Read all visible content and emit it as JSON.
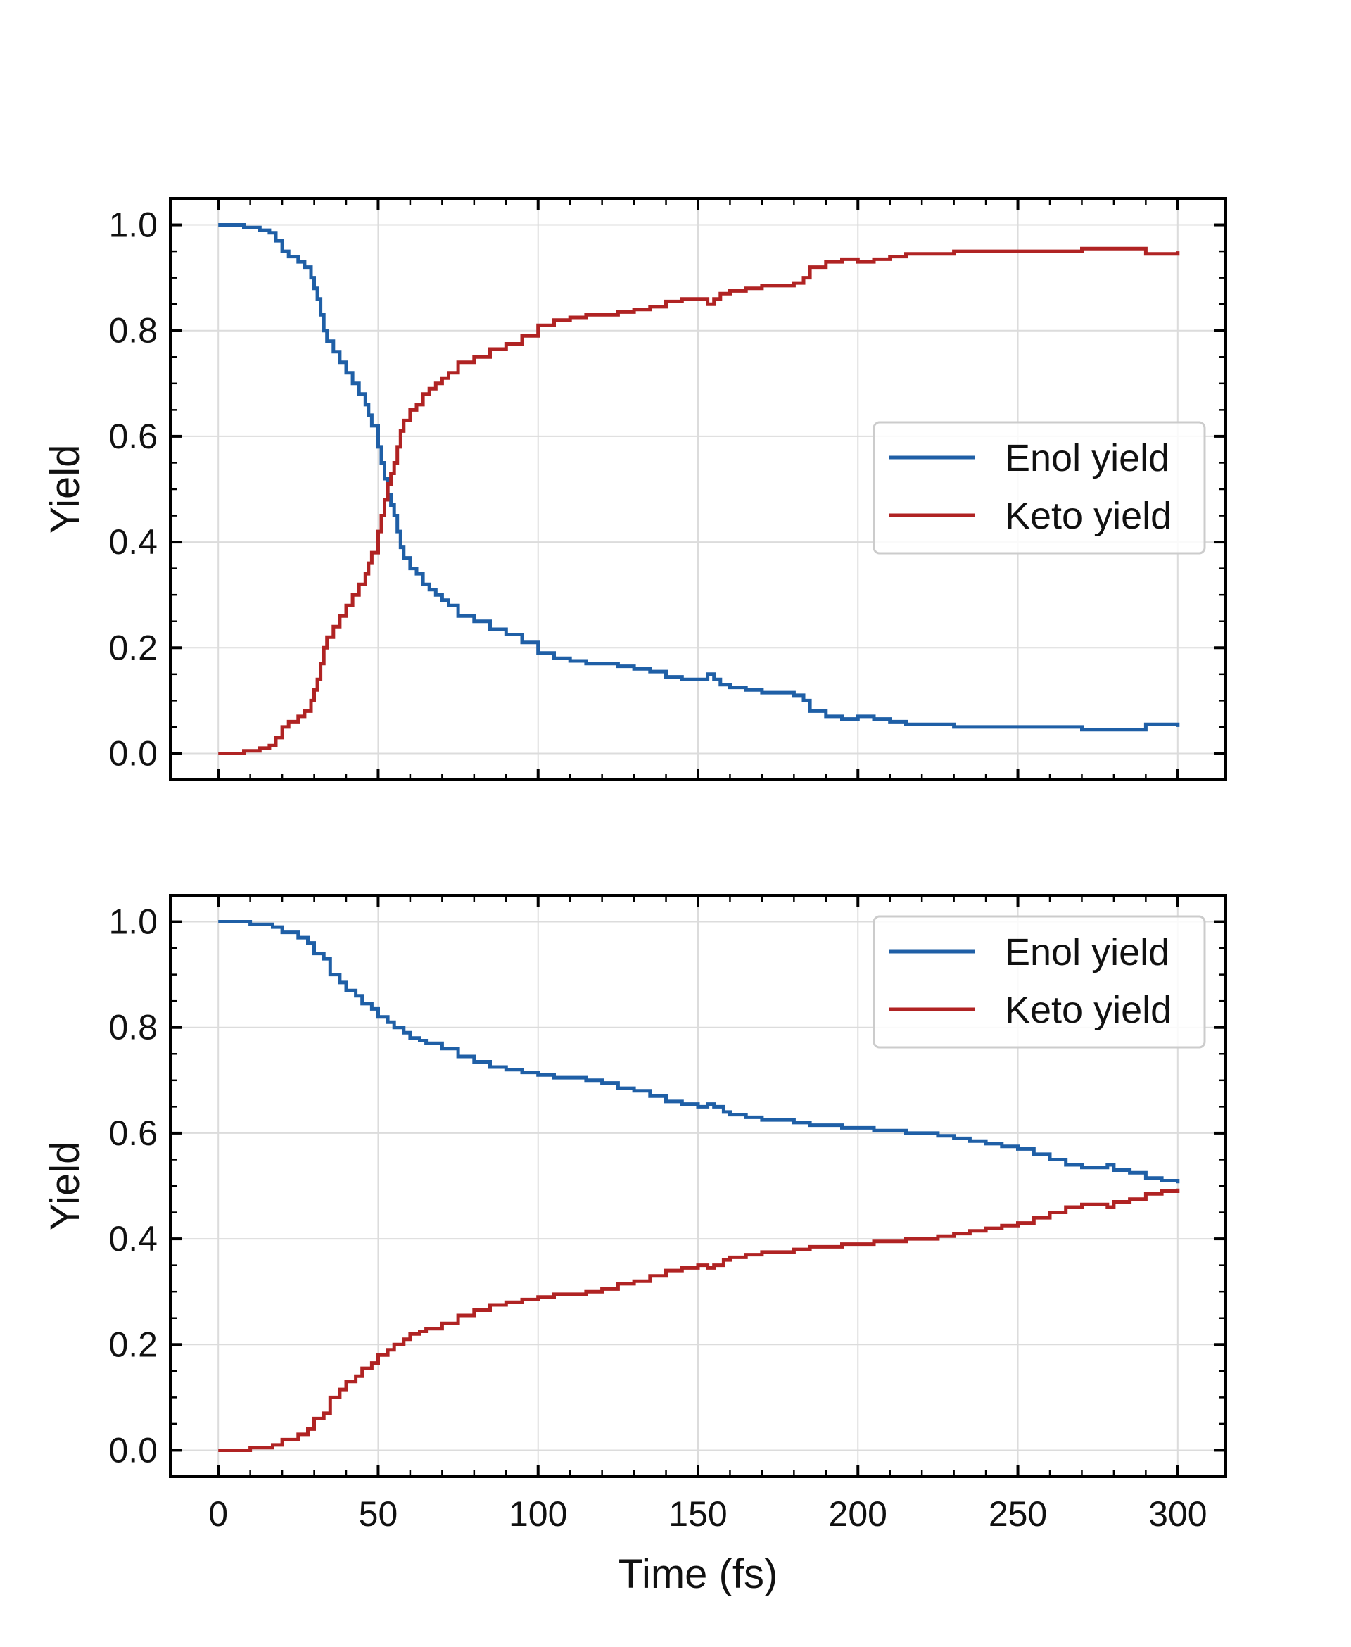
{
  "chart_data": [
    {
      "type": "line",
      "panel": "top",
      "title": "",
      "xlabel": "",
      "ylabel": "Yield",
      "xlim": [
        -15,
        315
      ],
      "ylim": [
        -0.05,
        1.05
      ],
      "xticks": [
        0,
        50,
        100,
        150,
        200,
        250,
        300
      ],
      "yticks": [
        0.0,
        0.2,
        0.4,
        0.6,
        0.8,
        1.0
      ],
      "ytick_labels": [
        "0.0",
        "0.2",
        "0.4",
        "0.6",
        "0.8",
        "1.0"
      ],
      "grid": true,
      "legend_position": "center-right",
      "series": [
        {
          "name": "Enol yield",
          "color": "#1f5fa6",
          "x": [
            0,
            5,
            8,
            11,
            13,
            16,
            18,
            20,
            22,
            25,
            27,
            29,
            30,
            31,
            32,
            33,
            34,
            36,
            38,
            40,
            42,
            44,
            46,
            47,
            48,
            50,
            51,
            52,
            53,
            54,
            55,
            56,
            57,
            58,
            60,
            62,
            64,
            66,
            68,
            70,
            72,
            75,
            80,
            85,
            90,
            95,
            100,
            105,
            110,
            115,
            120,
            125,
            130,
            135,
            140,
            145,
            150,
            153,
            155,
            157,
            160,
            165,
            170,
            175,
            180,
            183,
            185,
            190,
            195,
            200,
            205,
            210,
            215,
            220,
            230,
            240,
            250,
            260,
            270,
            280,
            285,
            290,
            295,
            300
          ],
          "values": [
            1.0,
            1.0,
            0.995,
            0.995,
            0.99,
            0.985,
            0.97,
            0.95,
            0.94,
            0.93,
            0.92,
            0.9,
            0.88,
            0.86,
            0.83,
            0.8,
            0.78,
            0.76,
            0.74,
            0.72,
            0.7,
            0.68,
            0.66,
            0.64,
            0.62,
            0.58,
            0.55,
            0.52,
            0.49,
            0.47,
            0.45,
            0.42,
            0.39,
            0.37,
            0.35,
            0.34,
            0.32,
            0.31,
            0.3,
            0.29,
            0.28,
            0.26,
            0.25,
            0.235,
            0.225,
            0.21,
            0.19,
            0.18,
            0.175,
            0.17,
            0.17,
            0.165,
            0.16,
            0.155,
            0.145,
            0.14,
            0.14,
            0.15,
            0.14,
            0.13,
            0.125,
            0.12,
            0.115,
            0.115,
            0.11,
            0.1,
            0.08,
            0.07,
            0.065,
            0.07,
            0.065,
            0.06,
            0.055,
            0.055,
            0.05,
            0.05,
            0.05,
            0.05,
            0.045,
            0.045,
            0.045,
            0.055,
            0.055,
            0.05
          ]
        },
        {
          "name": "Keto yield",
          "color": "#b02323",
          "x": [
            0,
            5,
            8,
            11,
            13,
            16,
            18,
            20,
            22,
            25,
            27,
            29,
            30,
            31,
            32,
            33,
            34,
            36,
            38,
            40,
            42,
            44,
            46,
            47,
            48,
            50,
            51,
            52,
            53,
            54,
            55,
            56,
            57,
            58,
            60,
            62,
            64,
            66,
            68,
            70,
            72,
            75,
            80,
            85,
            90,
            95,
            100,
            105,
            110,
            115,
            120,
            125,
            130,
            135,
            140,
            145,
            150,
            153,
            155,
            157,
            160,
            165,
            170,
            175,
            180,
            183,
            185,
            190,
            195,
            200,
            205,
            210,
            215,
            220,
            230,
            240,
            250,
            260,
            270,
            280,
            285,
            290,
            295,
            300
          ],
          "values": [
            0.0,
            0.0,
            0.005,
            0.005,
            0.01,
            0.015,
            0.03,
            0.05,
            0.06,
            0.07,
            0.08,
            0.1,
            0.12,
            0.14,
            0.17,
            0.2,
            0.22,
            0.24,
            0.26,
            0.28,
            0.3,
            0.32,
            0.34,
            0.36,
            0.38,
            0.42,
            0.45,
            0.48,
            0.51,
            0.53,
            0.55,
            0.58,
            0.61,
            0.63,
            0.65,
            0.66,
            0.68,
            0.69,
            0.7,
            0.71,
            0.72,
            0.74,
            0.75,
            0.765,
            0.775,
            0.79,
            0.81,
            0.82,
            0.825,
            0.83,
            0.83,
            0.835,
            0.84,
            0.845,
            0.855,
            0.86,
            0.86,
            0.85,
            0.86,
            0.87,
            0.875,
            0.88,
            0.885,
            0.885,
            0.89,
            0.9,
            0.92,
            0.93,
            0.935,
            0.93,
            0.935,
            0.94,
            0.945,
            0.945,
            0.95,
            0.95,
            0.95,
            0.95,
            0.955,
            0.955,
            0.955,
            0.945,
            0.945,
            0.95
          ]
        }
      ]
    },
    {
      "type": "line",
      "panel": "bottom",
      "title": "",
      "xlabel": "Time (fs)",
      "ylabel": "Yield",
      "xlim": [
        -15,
        315
      ],
      "ylim": [
        -0.05,
        1.05
      ],
      "xticks": [
        0,
        50,
        100,
        150,
        200,
        250,
        300
      ],
      "xtick_labels": [
        "0",
        "50",
        "100",
        "150",
        "200",
        "250",
        "300"
      ],
      "yticks": [
        0.0,
        0.2,
        0.4,
        0.6,
        0.8,
        1.0
      ],
      "ytick_labels": [
        "0.0",
        "0.2",
        "0.4",
        "0.6",
        "0.8",
        "1.0"
      ],
      "grid": true,
      "legend_position": "top-right",
      "series": [
        {
          "name": "Enol yield",
          "color": "#1f5fa6",
          "x": [
            0,
            5,
            10,
            15,
            17,
            20,
            25,
            28,
            30,
            33,
            35,
            38,
            40,
            43,
            45,
            48,
            50,
            53,
            55,
            58,
            60,
            63,
            65,
            70,
            75,
            80,
            85,
            90,
            95,
            100,
            105,
            110,
            115,
            120,
            125,
            130,
            135,
            140,
            145,
            150,
            153,
            155,
            158,
            160,
            165,
            170,
            175,
            180,
            185,
            190,
            195,
            200,
            205,
            210,
            215,
            220,
            225,
            230,
            235,
            240,
            245,
            250,
            255,
            260,
            265,
            270,
            275,
            278,
            280,
            285,
            290,
            295,
            300
          ],
          "values": [
            1.0,
            1.0,
            0.995,
            0.995,
            0.99,
            0.98,
            0.97,
            0.96,
            0.94,
            0.93,
            0.9,
            0.885,
            0.87,
            0.86,
            0.845,
            0.835,
            0.82,
            0.81,
            0.8,
            0.79,
            0.78,
            0.775,
            0.77,
            0.76,
            0.745,
            0.735,
            0.725,
            0.72,
            0.715,
            0.71,
            0.705,
            0.705,
            0.7,
            0.695,
            0.685,
            0.68,
            0.67,
            0.66,
            0.655,
            0.65,
            0.655,
            0.65,
            0.64,
            0.635,
            0.63,
            0.625,
            0.625,
            0.62,
            0.615,
            0.615,
            0.61,
            0.61,
            0.605,
            0.605,
            0.6,
            0.6,
            0.595,
            0.59,
            0.585,
            0.58,
            0.575,
            0.57,
            0.56,
            0.55,
            0.54,
            0.535,
            0.535,
            0.54,
            0.53,
            0.525,
            0.515,
            0.51,
            0.505
          ]
        },
        {
          "name": "Keto yield",
          "color": "#b02323",
          "x": [
            0,
            5,
            10,
            15,
            17,
            20,
            25,
            28,
            30,
            33,
            35,
            38,
            40,
            43,
            45,
            48,
            50,
            53,
            55,
            58,
            60,
            63,
            65,
            70,
            75,
            80,
            85,
            90,
            95,
            100,
            105,
            110,
            115,
            120,
            125,
            130,
            135,
            140,
            145,
            150,
            153,
            155,
            158,
            160,
            165,
            170,
            175,
            180,
            185,
            190,
            195,
            200,
            205,
            210,
            215,
            220,
            225,
            230,
            235,
            240,
            245,
            250,
            255,
            260,
            265,
            270,
            275,
            278,
            280,
            285,
            290,
            295,
            300
          ],
          "values": [
            0.0,
            0.0,
            0.005,
            0.005,
            0.01,
            0.02,
            0.03,
            0.04,
            0.06,
            0.07,
            0.1,
            0.115,
            0.13,
            0.14,
            0.155,
            0.165,
            0.18,
            0.19,
            0.2,
            0.21,
            0.22,
            0.225,
            0.23,
            0.24,
            0.255,
            0.265,
            0.275,
            0.28,
            0.285,
            0.29,
            0.295,
            0.295,
            0.3,
            0.305,
            0.315,
            0.32,
            0.33,
            0.34,
            0.345,
            0.35,
            0.345,
            0.35,
            0.36,
            0.365,
            0.37,
            0.375,
            0.375,
            0.38,
            0.385,
            0.385,
            0.39,
            0.39,
            0.395,
            0.395,
            0.4,
            0.4,
            0.405,
            0.41,
            0.415,
            0.42,
            0.425,
            0.43,
            0.44,
            0.45,
            0.46,
            0.465,
            0.465,
            0.46,
            0.47,
            0.475,
            0.485,
            0.49,
            0.495
          ]
        }
      ]
    }
  ]
}
